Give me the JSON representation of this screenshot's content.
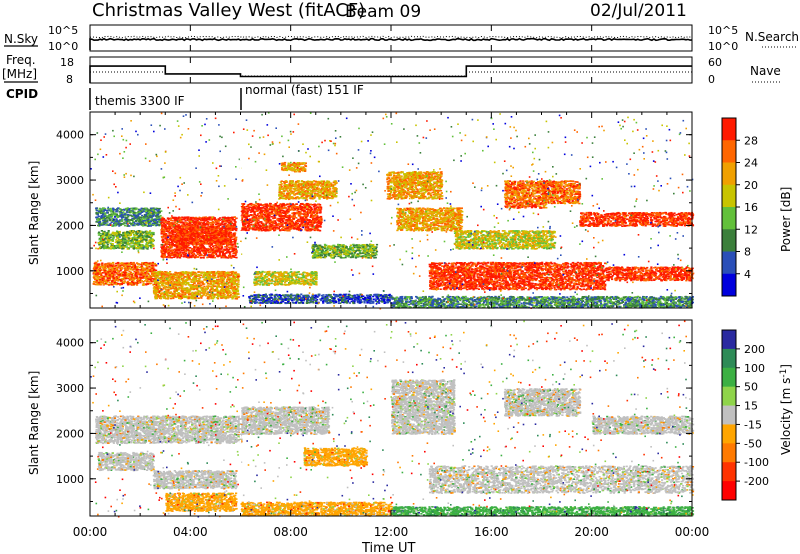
{
  "header": {
    "title": "Christmas Valley West (fitACF)",
    "beam": "Beam 09",
    "date": "02/Jul/2011"
  },
  "nsky_panel": {
    "label": "N.Sky",
    "left_ticks": [
      "10^5",
      "10^0"
    ],
    "right_ticks": [
      "10^5",
      "10^0"
    ],
    "right_label": "N.Search"
  },
  "freq_panel": {
    "label_line1": "Freq.",
    "label_line2": "[MHz]",
    "left_ticks": [
      "18",
      "8"
    ],
    "right_ticks": [
      "60",
      "0"
    ],
    "right_label": "Nave",
    "freq_steps": [
      {
        "t0": 0.0,
        "t1": 3.0,
        "mhz": 14.5
      },
      {
        "t0": 3.0,
        "t1": 6.0,
        "mhz": 11.5
      },
      {
        "t0": 6.0,
        "t1": 15.0,
        "mhz": 10.5
      },
      {
        "t0": 15.0,
        "t1": 24.0,
        "mhz": 14.5
      }
    ]
  },
  "cpid": {
    "label": "CPID",
    "modes": [
      {
        "name": "themis 3300 IF",
        "start_hour": 0.0
      },
      {
        "name": "normal (fast) 151 IF",
        "start_hour": 6.0
      }
    ]
  },
  "power_panel": {
    "ylabel": "Slant Range [km]",
    "yticks": [
      "4000",
      "3000",
      "2000",
      "1000"
    ],
    "colorbar_label": "Power [dB]",
    "colorbar_ticks": [
      "28",
      "24",
      "20",
      "16",
      "12",
      "8",
      "4"
    ],
    "colors": [
      "#0000dd",
      "#2a4fb8",
      "#3b7f3b",
      "#62c03a",
      "#c8c400",
      "#f0a000",
      "#ff6600",
      "#ff1a00"
    ]
  },
  "velocity_panel": {
    "ylabel": "Slant Range [km]",
    "yticks": [
      "4000",
      "3000",
      "2000",
      "1000"
    ],
    "colorbar_label": "Velocity [m s^-1]",
    "colorbar_ticks": [
      "200",
      "100",
      "50",
      "15",
      "-15",
      "-50",
      "-100",
      "-200"
    ],
    "colors": [
      "#2a2aa0",
      "#2e8b57",
      "#3cb043",
      "#8fd44a",
      "#c0c0c0",
      "#ffa500",
      "#ff7a00",
      "#ff3300",
      "#ff0000"
    ]
  },
  "xaxis": {
    "label": "Time UT",
    "ticks": [
      "00:00",
      "04:00",
      "08:00",
      "12:00",
      "16:00",
      "20:00",
      "00:00"
    ]
  },
  "chart_data": {
    "type": "heatmap",
    "x_range_hours": [
      0,
      24
    ],
    "y_range_km": [
      180,
      4500
    ],
    "power_regions": [
      {
        "t0": 0.2,
        "t1": 2.8,
        "r0": 2000,
        "r1": 2400,
        "level": 2
      },
      {
        "t0": 0.3,
        "t1": 2.5,
        "r0": 1500,
        "r1": 1900,
        "level": 3
      },
      {
        "t0": 0.1,
        "t1": 2.6,
        "r0": 700,
        "r1": 1200,
        "level": 6
      },
      {
        "t0": 2.8,
        "t1": 5.8,
        "r0": 1300,
        "r1": 2200,
        "level": 7
      },
      {
        "t0": 3.4,
        "t1": 5.6,
        "r0": 1600,
        "r1": 2000,
        "level": 7
      },
      {
        "t0": 2.5,
        "t1": 5.9,
        "r0": 400,
        "r1": 1000,
        "level": 5
      },
      {
        "t0": 6.0,
        "t1": 9.2,
        "r0": 1900,
        "r1": 2500,
        "level": 7
      },
      {
        "t0": 7.5,
        "t1": 9.8,
        "r0": 2600,
        "r1": 3000,
        "level": 5
      },
      {
        "t0": 7.6,
        "t1": 8.6,
        "r0": 3200,
        "r1": 3400,
        "level": 5
      },
      {
        "t0": 6.5,
        "t1": 9.0,
        "r0": 700,
        "r1": 1000,
        "level": 4
      },
      {
        "t0": 8.8,
        "t1": 11.4,
        "r0": 1300,
        "r1": 1600,
        "level": 3
      },
      {
        "t0": 6.3,
        "t1": 12.0,
        "r0": 300,
        "r1": 500,
        "level": 1
      },
      {
        "t0": 11.8,
        "t1": 14.0,
        "r0": 2600,
        "r1": 3200,
        "level": 5
      },
      {
        "t0": 12.2,
        "t1": 14.8,
        "r0": 1900,
        "r1": 2400,
        "level": 5
      },
      {
        "t0": 14.5,
        "t1": 18.5,
        "r0": 1500,
        "r1": 1900,
        "level": 4
      },
      {
        "t0": 13.5,
        "t1": 20.5,
        "r0": 600,
        "r1": 1200,
        "level": 7
      },
      {
        "t0": 19.5,
        "t1": 24.0,
        "r0": 2000,
        "r1": 2300,
        "level": 7
      },
      {
        "t0": 20.5,
        "t1": 24.0,
        "r0": 800,
        "r1": 1100,
        "level": 7
      },
      {
        "t0": 16.5,
        "t1": 18.2,
        "r0": 2400,
        "r1": 3000,
        "level": 6
      },
      {
        "t0": 18.0,
        "t1": 19.5,
        "r0": 2500,
        "r1": 3000,
        "level": 6
      },
      {
        "t0": 12.0,
        "t1": 24.0,
        "r0": 200,
        "r1": 450,
        "level": 2
      }
    ],
    "velocity_regions": [
      {
        "t0": 0.2,
        "t1": 6.0,
        "r0": 1800,
        "r1": 2400,
        "level": 4
      },
      {
        "t0": 0.3,
        "t1": 2.5,
        "r0": 1200,
        "r1": 1600,
        "level": 4
      },
      {
        "t0": 2.5,
        "t1": 5.8,
        "r0": 800,
        "r1": 1200,
        "level": 4
      },
      {
        "t0": 3.0,
        "t1": 5.8,
        "r0": 300,
        "r1": 700,
        "level": 5
      },
      {
        "t0": 6.0,
        "t1": 9.5,
        "r0": 2000,
        "r1": 2600,
        "level": 4
      },
      {
        "t0": 8.5,
        "t1": 11.0,
        "r0": 1300,
        "r1": 1700,
        "level": 5
      },
      {
        "t0": 6.0,
        "t1": 12.0,
        "r0": 200,
        "r1": 500,
        "level": 5
      },
      {
        "t0": 12.0,
        "t1": 14.5,
        "r0": 2000,
        "r1": 3200,
        "level": 4
      },
      {
        "t0": 13.5,
        "t1": 24.0,
        "r0": 700,
        "r1": 1300,
        "level": 4
      },
      {
        "t0": 20.0,
        "t1": 24.0,
        "r0": 2000,
        "r1": 2400,
        "level": 4
      },
      {
        "t0": 16.5,
        "t1": 19.5,
        "r0": 2400,
        "r1": 3000,
        "level": 4
      },
      {
        "t0": 12.0,
        "t1": 24.0,
        "r0": 200,
        "r1": 400,
        "level": 2
      }
    ]
  }
}
